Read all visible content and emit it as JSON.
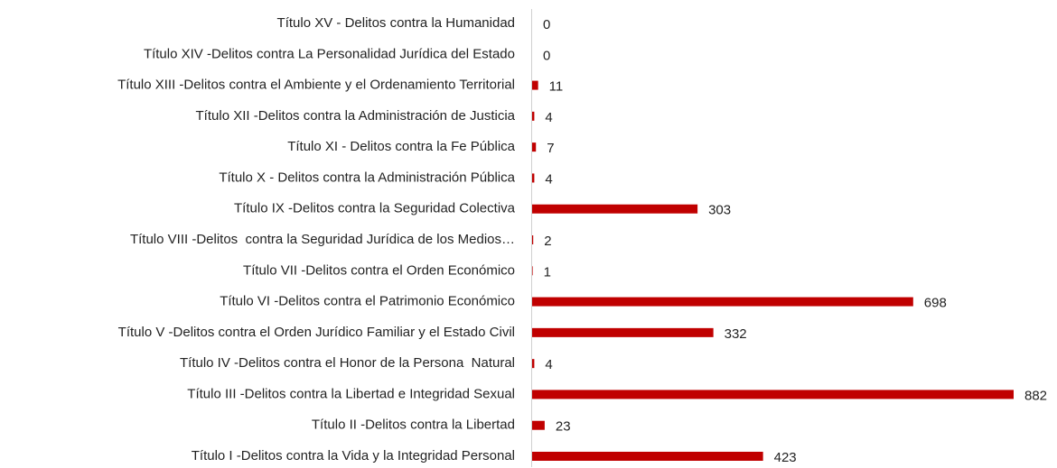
{
  "chart_data": {
    "type": "bar",
    "orientation": "horizontal",
    "categories": [
      "Título XV - Delitos contra la Humanidad",
      "Título XIV -Delitos contra La Personalidad Jurídica del Estado",
      "Título XIII -Delitos contra el Ambiente y el Ordenamiento Territorial",
      "Título XII -Delitos contra la Administración de Justicia",
      "Título XI - Delitos contra la Fe Pública",
      "Título X - Delitos contra la Administración Pública",
      "Título IX -Delitos contra la Seguridad Colectiva",
      "Título VIII -Delitos  contra la Seguridad Jurídica de los Medios…",
      "Título VII -Delitos contra el Orden Económico",
      "Título VI -Delitos contra el Patrimonio Económico",
      "Título V -Delitos contra el Orden Jurídico Familiar y el Estado Civil",
      "Título IV -Delitos contra el Honor de la Persona  Natural",
      "Título III -Delitos contra la Libertad e Integridad Sexual",
      "Título II -Delitos contra la Libertad",
      "Título I -Delitos contra la Vida y la Integridad Personal"
    ],
    "values": [
      0,
      0,
      11,
      4,
      7,
      4,
      303,
      2,
      1,
      698,
      332,
      4,
      882,
      23,
      423
    ],
    "color": "#c00000"
  }
}
